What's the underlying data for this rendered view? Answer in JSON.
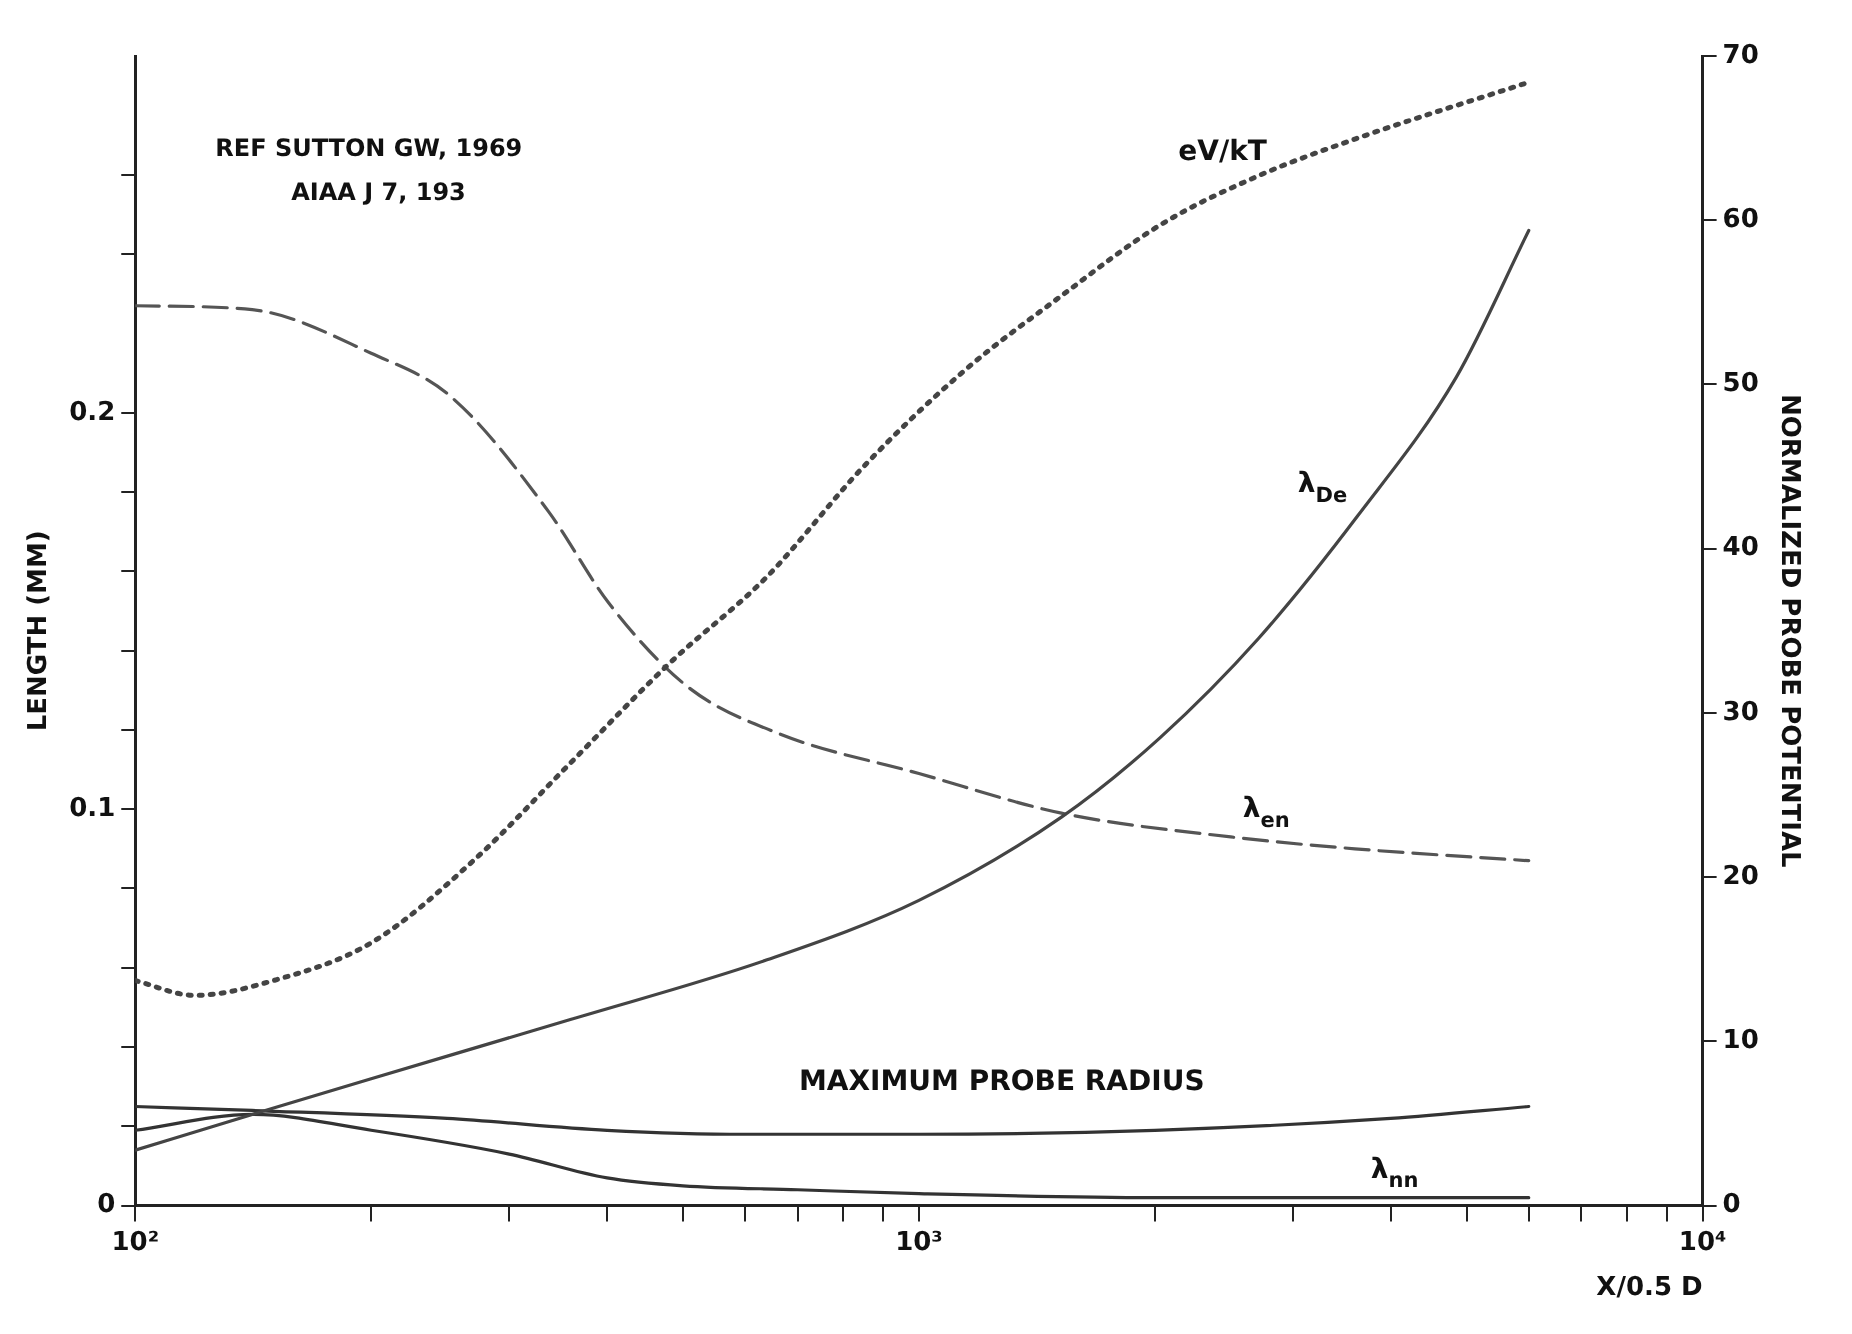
{
  "chart_data": {
    "type": "line",
    "xlabel": "X/0.5 D",
    "ylabel": "LENGTH (MM)",
    "y2label": "NORMALIZED PROBE POTENTIAL",
    "annotations": [
      "REF SUTTON GW, 1969",
      "AIAA J 7, 193"
    ],
    "log": "x",
    "xlim": [
      100,
      10000
    ],
    "xticks": [
      {
        "value": 100,
        "label": "10²"
      },
      {
        "value": 200,
        "label": null
      },
      {
        "value": 300,
        "label": null
      },
      {
        "value": 400,
        "label": null
      },
      {
        "value": 500,
        "label": null
      },
      {
        "value": 600,
        "label": null
      },
      {
        "value": 700,
        "label": null
      },
      {
        "value": 800,
        "label": null
      },
      {
        "value": 900,
        "label": null
      },
      {
        "value": 1000,
        "label": "10³"
      },
      {
        "value": 2000,
        "label": null
      },
      {
        "value": 3000,
        "label": null
      },
      {
        "value": 4000,
        "label": null
      },
      {
        "value": 5000,
        "label": null
      },
      {
        "value": 6000,
        "label": null
      },
      {
        "value": 7000,
        "label": null
      },
      {
        "value": 8000,
        "label": null
      },
      {
        "value": 9000,
        "label": null
      },
      {
        "value": 10000,
        "label": "10⁴"
      }
    ],
    "ylim": [
      0,
      0.29
    ],
    "yticks": [
      0,
      {
        "value": 0.02,
        "label": null
      },
      {
        "value": 0.04,
        "label": null
      },
      {
        "value": 0.06,
        "label": null
      },
      {
        "value": 0.08,
        "label": null
      },
      0.1,
      {
        "value": 0.12,
        "label": null
      },
      {
        "value": 0.14,
        "label": null
      },
      {
        "value": 0.16,
        "label": null
      },
      {
        "value": 0.18,
        "label": null
      },
      0.2,
      {
        "value": 0.24,
        "label": null
      },
      {
        "value": 0.26,
        "label": null
      }
    ],
    "y2lim": [
      0,
      70
    ],
    "y2ticks": [
      0,
      10,
      20,
      30,
      40,
      50,
      60,
      70
    ],
    "legend": false,
    "series": [
      {
        "name": "eV/kT",
        "color": "#444444",
        "axis": "y2",
        "line_style": "dotted",
        "x": [
          100,
          119,
          150,
          200,
          270,
          360,
          480,
          640,
          850,
          1140,
          1520,
          2030,
          2710,
          3630,
          6000
        ],
        "values": [
          13.7,
          12.8,
          13.7,
          16,
          21,
          27,
          33,
          38.3,
          45,
          50.8,
          55.4,
          59.7,
          62.7,
          65,
          68.4
        ]
      },
      {
        "name": "λ$_{De}$",
        "color": "#444444",
        "line_style": "solid",
        "x": [
          100,
          141,
          200,
          360,
          640,
          1000,
          1520,
          2030,
          2710,
          3630,
          4850,
          6000
        ],
        "values": [
          0.014,
          0.023,
          0.032,
          0.047,
          0.062,
          0.077,
          0.098,
          0.118,
          0.143,
          0.174,
          0.209,
          0.246
        ]
      },
      {
        "name": "λ$_{en}$",
        "color": "#555555",
        "line_style": "dashed",
        "x": [
          100,
          141,
          200,
          253,
          337,
          402,
          506,
          664,
          1000,
          1520,
          2500,
          3600,
          6000
        ],
        "values": [
          0.227,
          0.226,
          0.215,
          0.204,
          0.175,
          0.152,
          0.131,
          0.119,
          0.109,
          0.099,
          0.093,
          0.09,
          0.087
        ]
      },
      {
        "name": "MAXIMUM PROBE RADIUS",
        "color": "#333333",
        "line_style": "solid",
        "x": [
          100,
          141,
          250,
          400,
          600,
          1000,
          2000,
          4000,
          6000
        ],
        "values": [
          0.025,
          0.024,
          0.022,
          0.019,
          0.018,
          0.018,
          0.019,
          0.022,
          0.025
        ]
      },
      {
        "name": "λ$_{nn}$",
        "color": "#333333",
        "line_style": "solid",
        "x": [
          100,
          141,
          200,
          300,
          400,
          500,
          700,
          1000,
          2000,
          4000,
          6000
        ],
        "values": [
          0.019,
          0.023,
          0.019,
          0.013,
          0.007,
          0.005,
          0.004,
          0.003,
          0.002,
          0.002,
          0.002
        ]
      }
    ]
  }
}
